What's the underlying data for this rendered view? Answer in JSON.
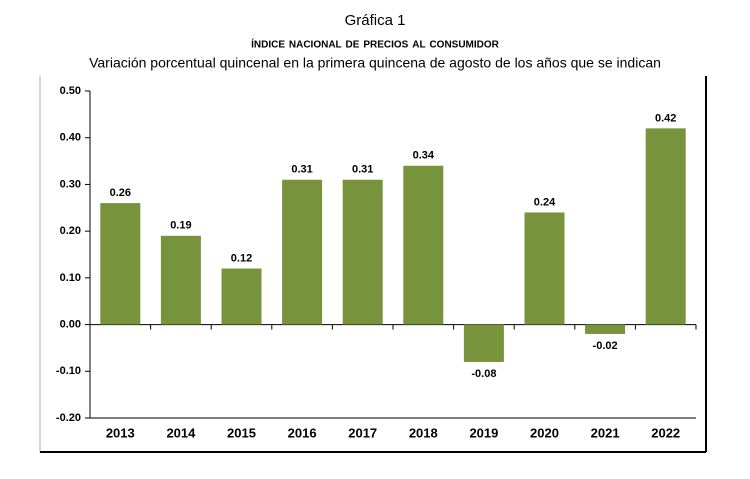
{
  "chart_data": {
    "type": "bar",
    "title": "Gráfica 1",
    "subtitle": "Índice Nacional de Precios al Consumidor",
    "description": "Variación porcentual quincenal en la primera quincena de agosto de los años que se indican",
    "categories": [
      "2013",
      "2014",
      "2015",
      "2016",
      "2017",
      "2018",
      "2019",
      "2020",
      "2021",
      "2022"
    ],
    "values": [
      0.26,
      0.19,
      0.12,
      0.31,
      0.31,
      0.34,
      -0.08,
      0.24,
      -0.02,
      0.42
    ],
    "color": "#77933c",
    "ylim": [
      -0.2,
      0.5
    ],
    "yticks": [
      {
        "value": -0.2,
        "label": "-0.20"
      },
      {
        "value": -0.1,
        "label": "-0.10"
      },
      {
        "value": 0,
        "label": "0.00"
      },
      {
        "value": 0.1,
        "label": "0.10"
      },
      {
        "value": 0.2,
        "label": "0.20"
      },
      {
        "value": 0.3,
        "label": "0.30"
      },
      {
        "value": 0.4,
        "label": "0.40"
      },
      {
        "value": 0.5,
        "label": "0.50"
      }
    ],
    "grid": false
  }
}
